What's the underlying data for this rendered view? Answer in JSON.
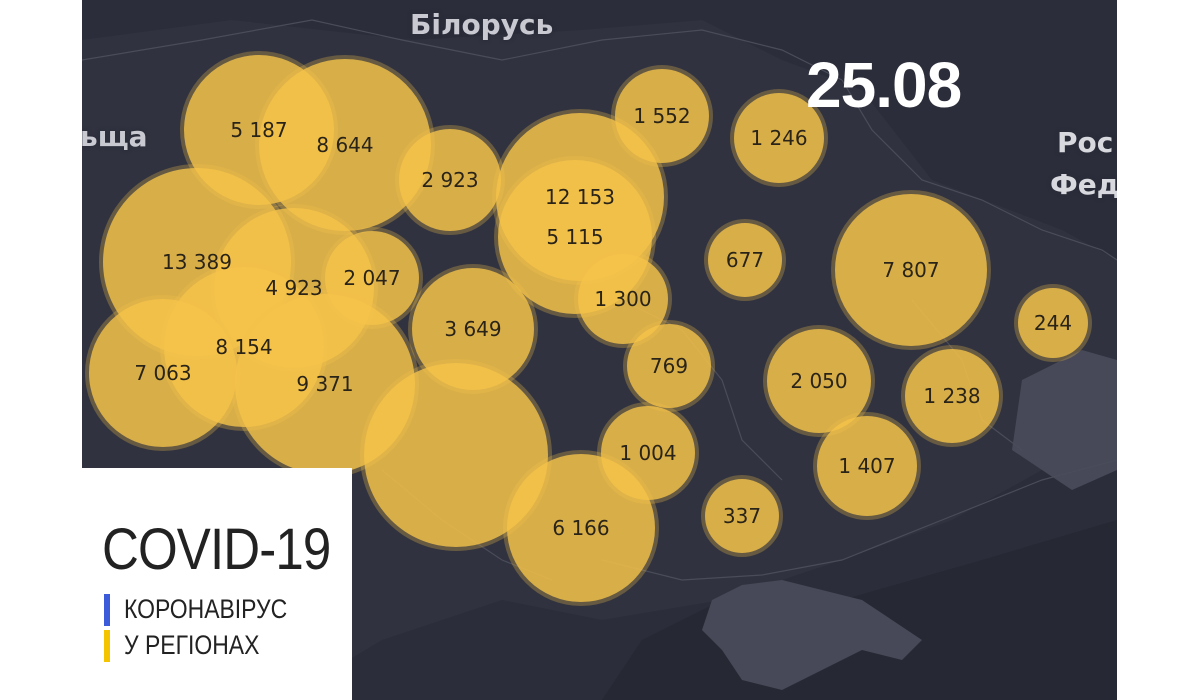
{
  "date": "25.08",
  "countries": {
    "belarus": "Білорусь",
    "poland": "ьща",
    "russia_line1": "Рос",
    "russia_line2": "Фед"
  },
  "bubbles": [
    "5 187",
    "8 644",
    "2 923",
    "12 153",
    "5 115",
    "1 552",
    "1 246",
    "13 389",
    "4 923",
    "2 047",
    "1 300",
    "677",
    "7 807",
    "244",
    "8 154",
    "7 063",
    "9 371",
    "3 649",
    "769",
    "2 050",
    "1 238",
    "1 004",
    "1 407",
    "6 166",
    "337",
    ""
  ],
  "panel": {
    "title": "COVID-19",
    "line1": "КОРОНАВІРУС",
    "line2": "У РЕГІОНАХ"
  },
  "colors": {
    "map_background": "#2b2d3a",
    "bubble_fill": "#f5c34a",
    "flag_blue": "#3b5bdb",
    "flag_yellow": "#f5c400"
  }
}
